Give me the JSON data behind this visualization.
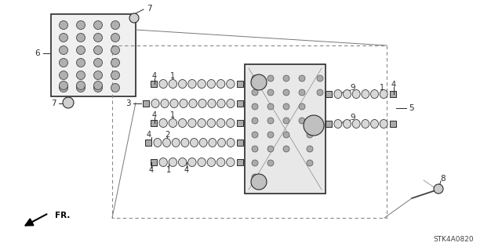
{
  "bg_color": "#ffffff",
  "fig_width": 6.4,
  "fig_height": 3.19,
  "dpi": 100,
  "diagram_code": "STK4A0820",
  "line_color": "#2a2a2a",
  "gray_fill": "#e0e0e0",
  "dark_gray": "#555555",
  "light_gray": "#cccccc"
}
